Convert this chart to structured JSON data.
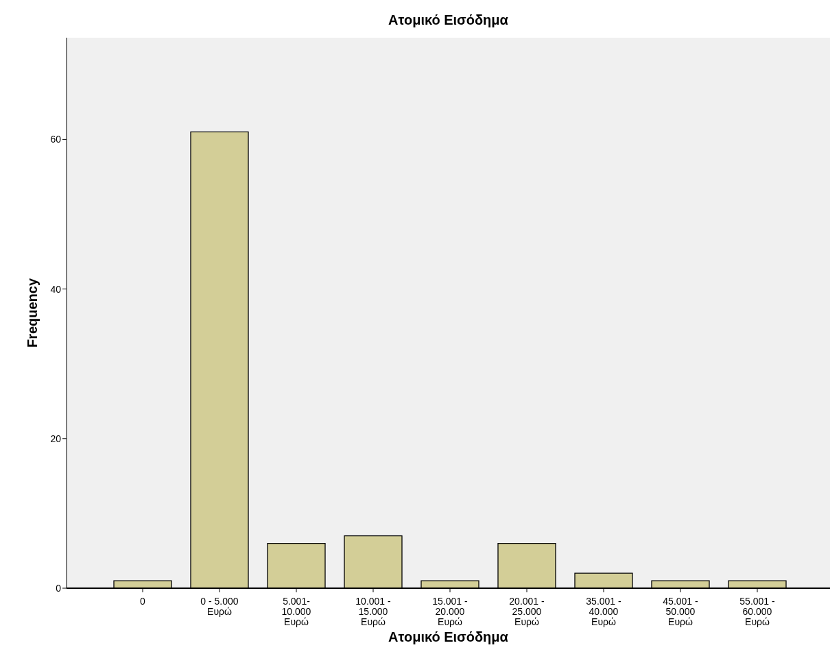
{
  "chart_data": {
    "type": "bar",
    "title": "Ατομικό Εισόδημα",
    "xlabel": "Ατομικό Εισόδημα",
    "ylabel": "Frequency",
    "categories": [
      "0",
      "0 - 5.000 Ευρώ",
      "5.001- 10.000 Ευρώ",
      "10.001 - 15.000 Ευρώ",
      "15.001 - 20.000 Ευρώ",
      "20.001 - 25.000 Ευρώ",
      "35.001 - 40.000 Ευρώ",
      "45.001 - 50.000 Ευρώ",
      "55.001 - 60.000 Ευρώ"
    ],
    "values": [
      1,
      61,
      6,
      7,
      1,
      6,
      2,
      1,
      1
    ],
    "color": "#d3ce97",
    "ylim": [
      0,
      73.6
    ],
    "yticks": [
      0,
      20,
      40,
      60
    ],
    "grid": false,
    "legend": false
  }
}
